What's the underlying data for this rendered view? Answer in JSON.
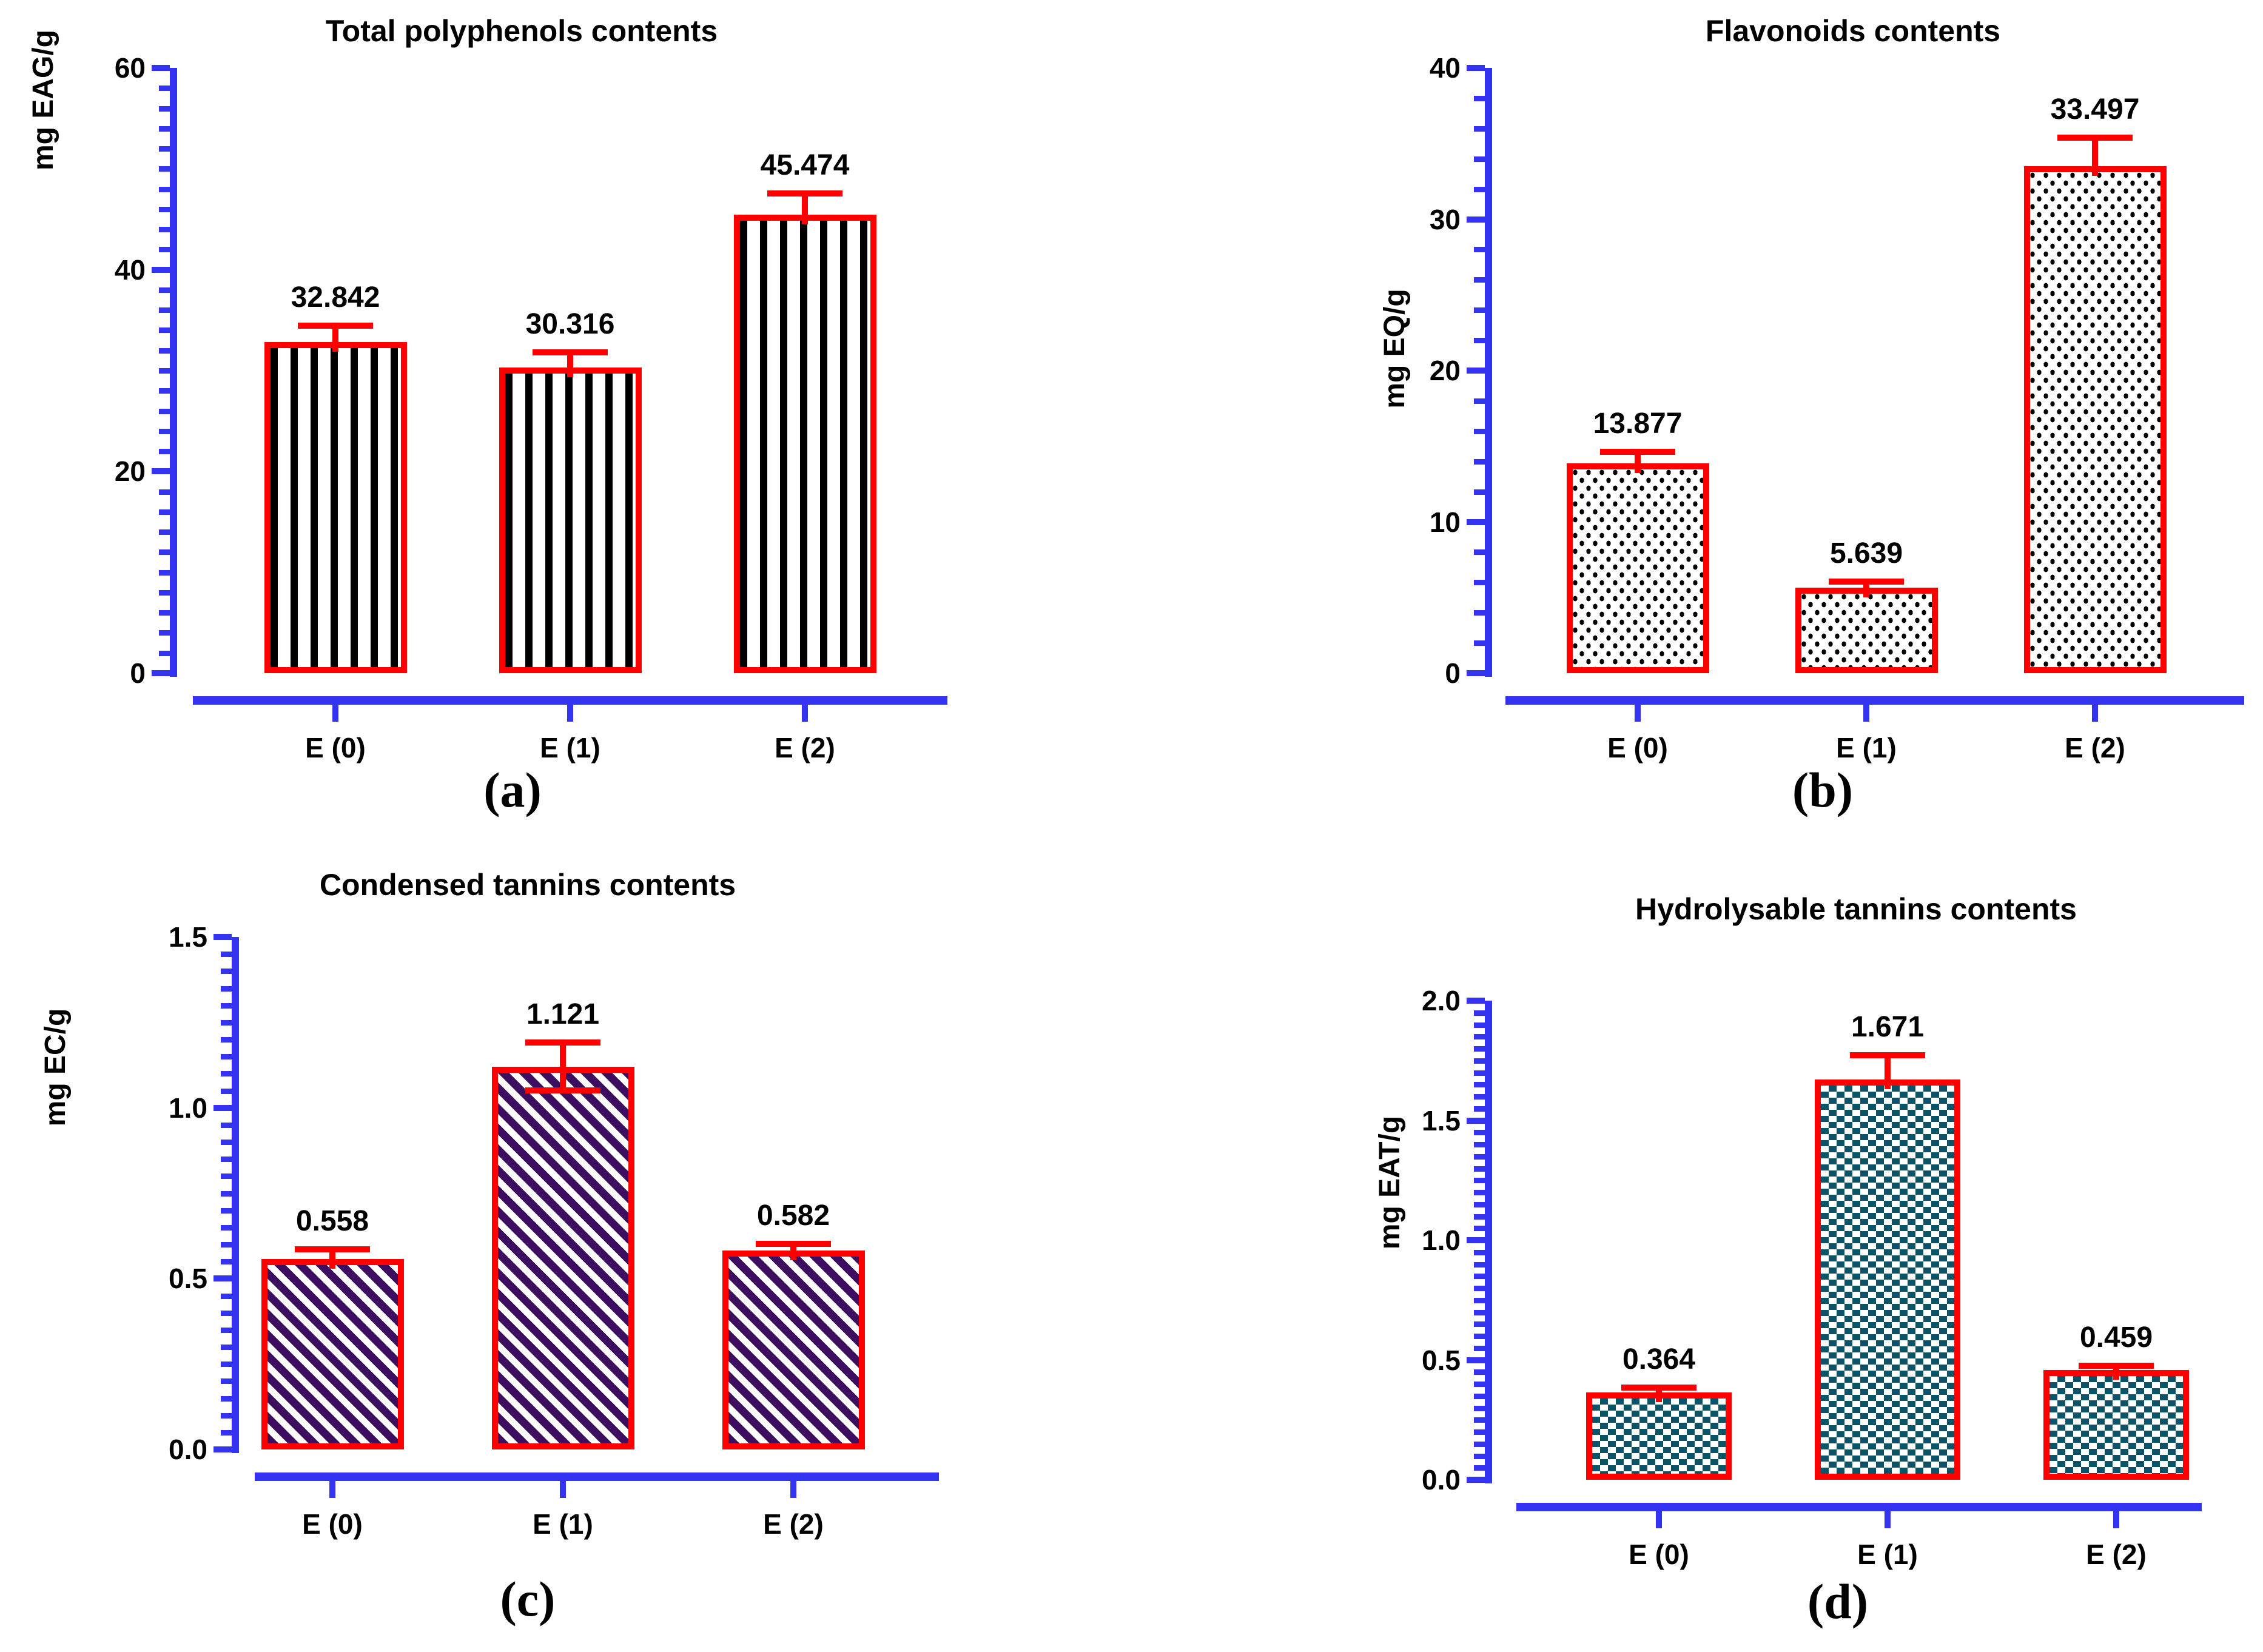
{
  "figure": {
    "background": "#ffffff",
    "axis_color": "#3533f2",
    "bar_border_color": "#ff0000",
    "error_bar_color": "#ff0000",
    "text_color": "#000000"
  },
  "chart_data": [
    {
      "type": "bar",
      "panel_letter": "(a)",
      "title": "Total polyphenols contents",
      "ylabel": "mg EAG/g",
      "categories": [
        "E (0)",
        "E (1)",
        "E (2)"
      ],
      "values": [
        32.842,
        30.316,
        45.474
      ],
      "value_labels": [
        "32.842",
        "30.316",
        "45.474"
      ],
      "errors": [
        1.6,
        1.5,
        2.1
      ],
      "error_lower_caps": [
        false,
        false,
        false
      ],
      "ylim": [
        0,
        60
      ],
      "ytick_values": [
        0,
        20,
        40,
        60
      ],
      "ytick_labels": [
        "0",
        "20",
        "40",
        "60"
      ],
      "minor_tick_step": 2,
      "grid": false,
      "legend": "none",
      "pattern": "vertical-stripes",
      "pattern_color": "#000000"
    },
    {
      "type": "bar",
      "panel_letter": "(b)",
      "title": "Flavonoids contents",
      "ylabel": "mg EQ/g",
      "categories": [
        "E (0)",
        "E (1)",
        "E (2)"
      ],
      "values": [
        13.877,
        5.639,
        33.497
      ],
      "value_labels": [
        "13.877",
        "5.639",
        "33.497"
      ],
      "errors": [
        0.75,
        0.4,
        1.9
      ],
      "error_lower_caps": [
        false,
        false,
        false
      ],
      "ylim": [
        0,
        40
      ],
      "ytick_values": [
        0,
        10,
        20,
        30,
        40
      ],
      "ytick_labels": [
        "0",
        "10",
        "20",
        "30",
        "40"
      ],
      "minor_tick_step": 2,
      "grid": false,
      "legend": "none",
      "pattern": "stipple-dots",
      "pattern_color": "#000000"
    },
    {
      "type": "bar",
      "panel_letter": "(c)",
      "title": "Condensed tannins contents",
      "ylabel": "mg EC/g",
      "categories": [
        "E (0)",
        "E (1)",
        "E (2)"
      ],
      "values": [
        0.558,
        1.121,
        0.582
      ],
      "value_labels": [
        "0.558",
        "1.121",
        "0.582"
      ],
      "errors": [
        0.028,
        0.07,
        0.02
      ],
      "error_lower_caps": [
        false,
        true,
        false
      ],
      "ylim": [
        0,
        1.5
      ],
      "ytick_values": [
        0,
        0.5,
        1.0,
        1.5
      ],
      "ytick_labels": [
        "0.0",
        "0.5",
        "1.0",
        "1.5"
      ],
      "minor_tick_step": 0.05,
      "grid": false,
      "legend": "none",
      "pattern": "diagonal-stripes",
      "pattern_color": "#3d0e5f"
    },
    {
      "type": "bar",
      "panel_letter": "(d)",
      "title": "Hydrolysable tannins contents",
      "ylabel": "mg EAT/g",
      "categories": [
        "E (0)",
        "E (1)",
        "E (2)"
      ],
      "values": [
        0.364,
        1.671,
        0.459
      ],
      "value_labels": [
        "0.364",
        "1.671",
        "0.459"
      ],
      "errors": [
        0.022,
        0.1,
        0.018
      ],
      "error_lower_caps": [
        false,
        false,
        false
      ],
      "ylim": [
        0,
        2.0
      ],
      "ytick_values": [
        0,
        0.5,
        1.0,
        1.5,
        2.0
      ],
      "ytick_labels": [
        "0.0",
        "0.5",
        "1.0",
        "1.5",
        "2.0"
      ],
      "minor_tick_step": 0.05,
      "grid": false,
      "legend": "none",
      "pattern": "checkerboard",
      "pattern_color": "#0d5368"
    }
  ]
}
